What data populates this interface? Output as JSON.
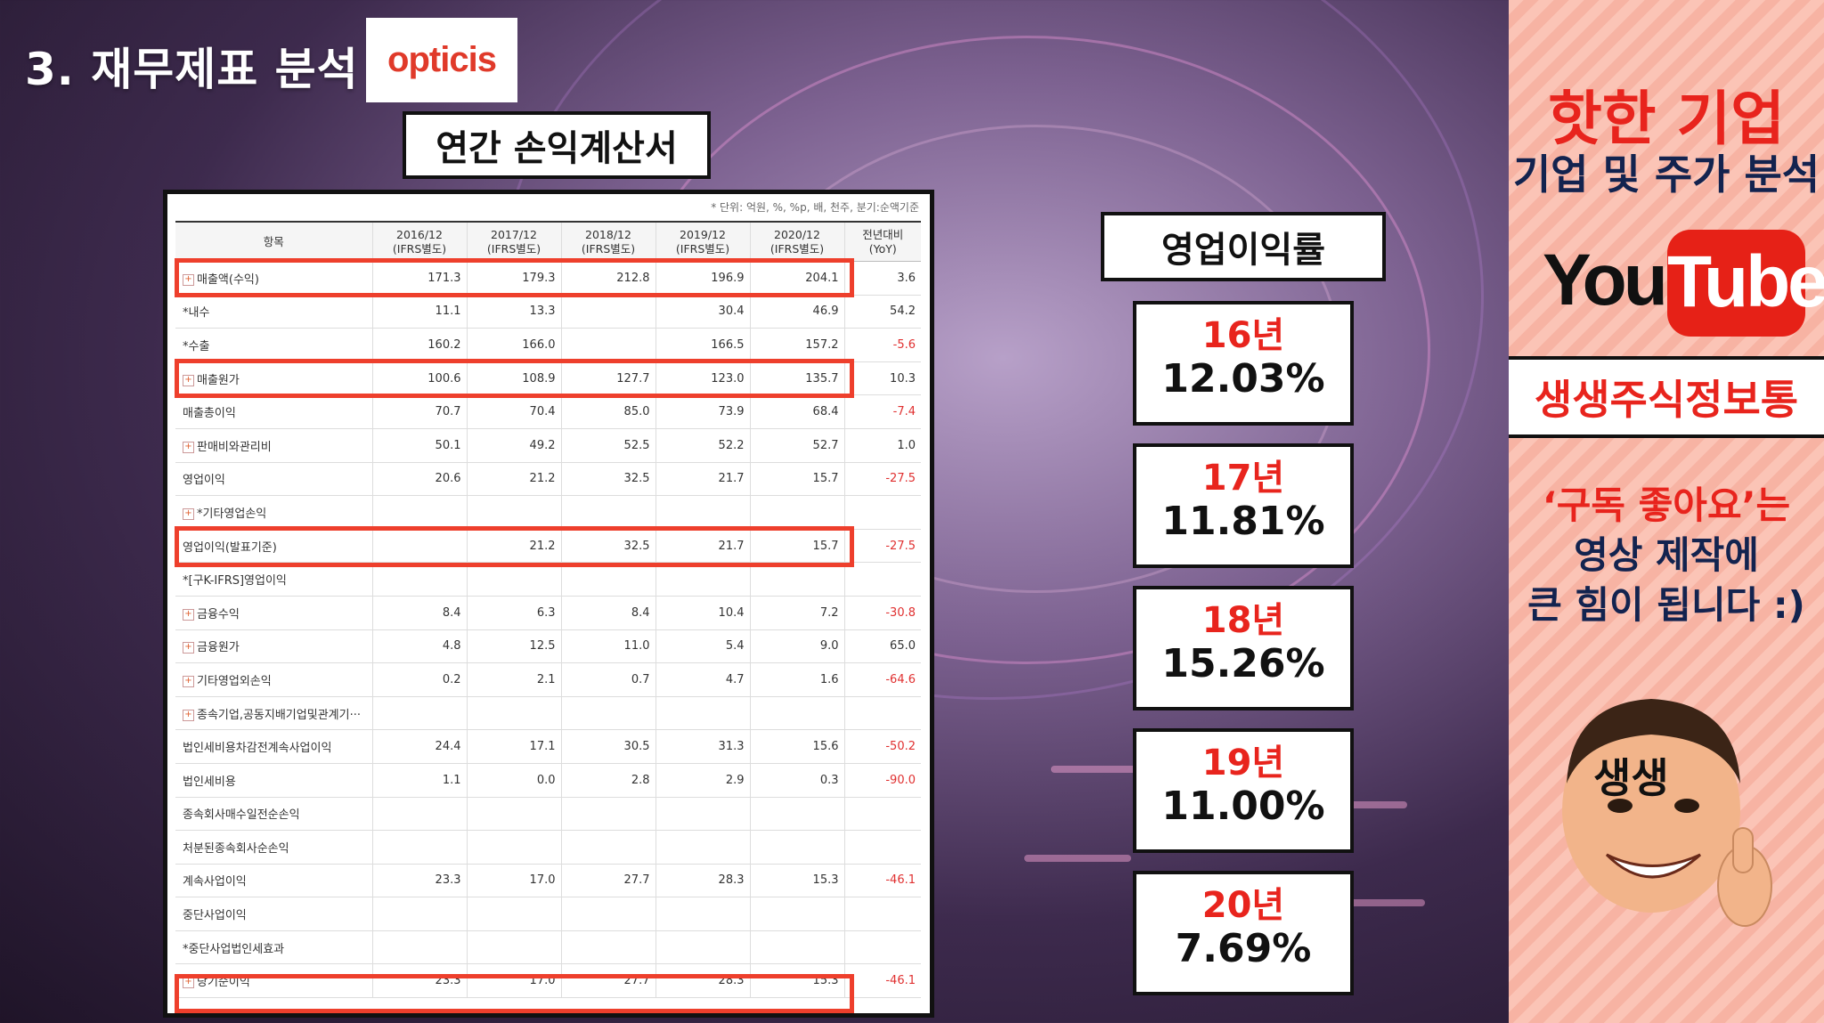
{
  "header": {
    "title": "3. 재무제표 분석",
    "logo_text": "opticis"
  },
  "table_title": "연간 손익계산서",
  "table": {
    "unit_note": "* 단위: 억원, %, %p, 배, 천주, 분기:순액기준",
    "columns": [
      {
        "l1": "항목",
        "l2": ""
      },
      {
        "l1": "2016/12",
        "l2": "(IFRS별도)"
      },
      {
        "l1": "2017/12",
        "l2": "(IFRS별도)"
      },
      {
        "l1": "2018/12",
        "l2": "(IFRS별도)"
      },
      {
        "l1": "2019/12",
        "l2": "(IFRS별도)"
      },
      {
        "l1": "2020/12",
        "l2": "(IFRS별도)"
      },
      {
        "l1": "전년대비",
        "l2": "(YoY)"
      }
    ],
    "rows": [
      {
        "label": "매출액(수익)",
        "expand": true,
        "values": [
          "171.3",
          "179.3",
          "212.8",
          "196.9",
          "204.1",
          "3.6"
        ]
      },
      {
        "label": "*내수",
        "expand": false,
        "values": [
          "11.1",
          "13.3",
          "",
          "30.4",
          "46.9",
          "54.2"
        ]
      },
      {
        "label": "*수출",
        "expand": false,
        "values": [
          "160.2",
          "166.0",
          "",
          "166.5",
          "157.2",
          "-5.6"
        ]
      },
      {
        "label": "매출원가",
        "expand": true,
        "values": [
          "100.6",
          "108.9",
          "127.7",
          "123.0",
          "135.7",
          "10.3"
        ]
      },
      {
        "label": "매출총이익",
        "expand": false,
        "values": [
          "70.7",
          "70.4",
          "85.0",
          "73.9",
          "68.4",
          "-7.4"
        ]
      },
      {
        "label": "판매비와관리비",
        "expand": true,
        "values": [
          "50.1",
          "49.2",
          "52.5",
          "52.2",
          "52.7",
          "1.0"
        ]
      },
      {
        "label": "영업이익",
        "expand": false,
        "values": [
          "20.6",
          "21.2",
          "32.5",
          "21.7",
          "15.7",
          "-27.5"
        ]
      },
      {
        "label": "*기타영업손익",
        "expand": true,
        "values": [
          "",
          "",
          "",
          "",
          "",
          ""
        ]
      },
      {
        "label": "영업이익(발표기준)",
        "expand": false,
        "values": [
          "",
          "21.2",
          "32.5",
          "21.7",
          "15.7",
          "-27.5"
        ]
      },
      {
        "label": "*[구K-IFRS]영업이익",
        "expand": false,
        "values": [
          "",
          "",
          "",
          "",
          "",
          ""
        ]
      },
      {
        "label": "금융수익",
        "expand": true,
        "values": [
          "8.4",
          "6.3",
          "8.4",
          "10.4",
          "7.2",
          "-30.8"
        ]
      },
      {
        "label": "금융원가",
        "expand": true,
        "values": [
          "4.8",
          "12.5",
          "11.0",
          "5.4",
          "9.0",
          "65.0"
        ]
      },
      {
        "label": "기타영업외손익",
        "expand": true,
        "values": [
          "0.2",
          "2.1",
          "0.7",
          "4.7",
          "1.6",
          "-64.6"
        ]
      },
      {
        "label": "종속기업,공동지배기업및관계기···",
        "expand": true,
        "values": [
          "",
          "",
          "",
          "",
          "",
          ""
        ]
      },
      {
        "label": "법인세비용차감전계속사업이익",
        "expand": false,
        "values": [
          "24.4",
          "17.1",
          "30.5",
          "31.3",
          "15.6",
          "-50.2"
        ]
      },
      {
        "label": "법인세비용",
        "expand": false,
        "values": [
          "1.1",
          "0.0",
          "2.8",
          "2.9",
          "0.3",
          "-90.0"
        ]
      },
      {
        "label": "종속회사매수일전순손익",
        "expand": false,
        "values": [
          "",
          "",
          "",
          "",
          "",
          ""
        ]
      },
      {
        "label": "처분된종속회사순손익",
        "expand": false,
        "values": [
          "",
          "",
          "",
          "",
          "",
          ""
        ]
      },
      {
        "label": "계속사업이익",
        "expand": false,
        "values": [
          "23.3",
          "17.0",
          "27.7",
          "28.3",
          "15.3",
          "-46.1"
        ]
      },
      {
        "label": "중단사업이익",
        "expand": false,
        "values": [
          "",
          "",
          "",
          "",
          "",
          ""
        ]
      },
      {
        "label": "*중단사업법인세효과",
        "expand": false,
        "values": [
          "",
          "",
          "",
          "",
          "",
          ""
        ]
      },
      {
        "label": "당기순이익",
        "expand": true,
        "values": [
          "23.3",
          "17.0",
          "27.7",
          "28.3",
          "15.3",
          "-46.1"
        ]
      }
    ]
  },
  "margin": {
    "title": "영업이익률",
    "items": [
      {
        "year": "16년",
        "value": "12.03%"
      },
      {
        "year": "17년",
        "value": "11.81%"
      },
      {
        "year": "18년",
        "value": "15.26%"
      },
      {
        "year": "19년",
        "value": "11.00%"
      },
      {
        "year": "20년",
        "value": "7.69%"
      }
    ]
  },
  "sidebar": {
    "title": "핫한 기업",
    "subtitle": "기업 및 주가 분석",
    "youtube_you": "You",
    "youtube_tube": "Tube",
    "channel": "생생주식정보통",
    "msg_quote": "‘구독 좋아요’는",
    "msg_line2": "영상 제작에",
    "msg_line3": "큰 힘이 됩니다 :)",
    "avatar_text": "생생"
  }
}
